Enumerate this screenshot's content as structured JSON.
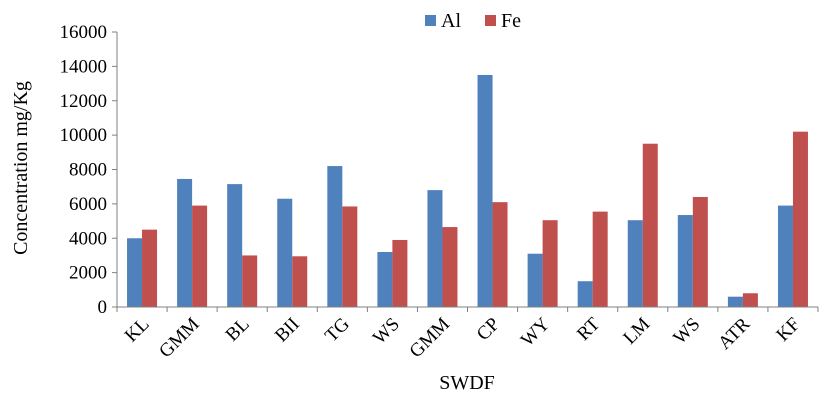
{
  "chart_data": {
    "type": "bar",
    "title": "",
    "xlabel": "SWDF",
    "ylabel": "Concentration mg/Kg",
    "ylim": [
      0,
      16000
    ],
    "yticks": [
      0,
      2000,
      4000,
      6000,
      8000,
      10000,
      12000,
      14000,
      16000
    ],
    "grid": false,
    "legend_position": "top-center",
    "categories": [
      "KL",
      "GMM",
      "BL",
      "BII",
      "TG",
      "WS",
      "GMM",
      "CP",
      "WY",
      "RT",
      "LM",
      "WS",
      "ATR",
      "KF"
    ],
    "series": [
      {
        "name": "Al",
        "color": "#4F81BD",
        "values": [
          4000,
          7450,
          7150,
          6300,
          8200,
          3200,
          6800,
          13500,
          3100,
          1500,
          5050,
          5350,
          600,
          5900
        ]
      },
      {
        "name": "Fe",
        "color": "#C0504D",
        "values": [
          4500,
          5900,
          3000,
          2950,
          5850,
          3900,
          4650,
          6100,
          5050,
          5550,
          9500,
          6400,
          800,
          10200
        ]
      }
    ]
  }
}
